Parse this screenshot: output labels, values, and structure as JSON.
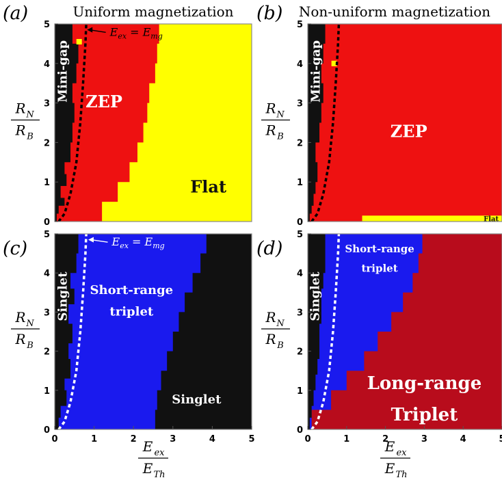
{
  "chart_data": [
    {
      "id": "a",
      "type": "heatmap",
      "panel_letter": "(a)",
      "title": "Uniform magnetization",
      "xlim": [
        0,
        5
      ],
      "ylim": [
        0,
        5
      ],
      "x_ticks": [],
      "y_ticks": [
        "0",
        "1",
        "2",
        "3",
        "4",
        "5"
      ],
      "ylabel_num": "R",
      "ylabel_num_sub": "N",
      "ylabel_den": "R",
      "ylabel_den_sub": "B",
      "colors": {
        "left": "#111111",
        "middle": "#ee1111",
        "right": "#ffff00"
      },
      "boundary_left": [
        [
          0.0,
          0.05
        ],
        [
          0.2,
          0.1
        ],
        [
          0.4,
          0.25
        ],
        [
          0.6,
          0.15
        ],
        [
          0.9,
          0.3
        ],
        [
          1.2,
          0.25
        ],
        [
          1.5,
          0.4
        ],
        [
          2.0,
          0.45
        ],
        [
          2.5,
          0.5
        ],
        [
          3.0,
          0.45
        ],
        [
          3.5,
          0.55
        ],
        [
          4.0,
          0.6
        ],
        [
          4.5,
          0.45
        ],
        [
          5.0,
          0.5
        ]
      ],
      "boundary_right": [
        [
          0.0,
          1.2
        ],
        [
          0.5,
          1.6
        ],
        [
          1.0,
          1.9
        ],
        [
          1.5,
          2.1
        ],
        [
          2.0,
          2.25
        ],
        [
          2.5,
          2.35
        ],
        [
          3.0,
          2.4
        ],
        [
          3.5,
          2.55
        ],
        [
          4.0,
          2.6
        ],
        [
          4.5,
          2.65
        ],
        [
          5.0,
          2.75
        ]
      ],
      "dashed_curve": {
        "color": "#000000",
        "points": [
          [
            0.1,
            0.0
          ],
          [
            0.25,
            0.2
          ],
          [
            0.4,
            0.7
          ],
          [
            0.55,
            1.5
          ],
          [
            0.65,
            2.5
          ],
          [
            0.72,
            3.5
          ],
          [
            0.78,
            4.5
          ],
          [
            0.8,
            5.0
          ]
        ]
      },
      "labels": [
        {
          "text": "Mini-gap",
          "x": 0.22,
          "y": 3.8,
          "rotate": -90,
          "size": 18,
          "cls": "white"
        },
        {
          "text": "ZEP",
          "x": 1.25,
          "y": 3.0,
          "rotate": 0,
          "size": 24,
          "cls": "white"
        },
        {
          "text": "Flat",
          "x": 3.9,
          "y": 0.85,
          "rotate": 0,
          "size": 24,
          "cls": "dark"
        }
      ],
      "annotation": {
        "text_main": "E",
        "text_sub": "ex",
        "text_eq": " = E",
        "text_sub2": "mg",
        "color": "#000000",
        "x": 1.4,
        "y": 4.7,
        "arrow_to": [
          0.82,
          4.85
        ]
      },
      "small_markers": [
        {
          "x": 0.62,
          "y": 4.55,
          "color": "#ffff00"
        }
      ]
    },
    {
      "id": "b",
      "type": "heatmap",
      "panel_letter": "(b)",
      "title": "Non-uniform magnetization",
      "xlim": [
        0,
        5
      ],
      "ylim": [
        0,
        5
      ],
      "x_ticks": [],
      "y_ticks": [
        "0",
        "1",
        "2",
        "3",
        "4",
        "5"
      ],
      "ylabel_num": "R",
      "ylabel_num_sub": "N",
      "ylabel_den": "R",
      "ylabel_den_sub": "B",
      "colors": {
        "left": "#111111",
        "middle": "#ee1111",
        "right": "#ffff00"
      },
      "boundary_left": [
        [
          0.0,
          0.05
        ],
        [
          0.2,
          0.1
        ],
        [
          0.4,
          0.15
        ],
        [
          0.7,
          0.2
        ],
        [
          1.0,
          0.25
        ],
        [
          1.5,
          0.2
        ],
        [
          2.0,
          0.3
        ],
        [
          2.5,
          0.35
        ],
        [
          3.0,
          0.4
        ],
        [
          3.5,
          0.35
        ],
        [
          4.0,
          0.4
        ],
        [
          4.5,
          0.45
        ],
        [
          5.0,
          0.5
        ]
      ],
      "bottom_strip": {
        "x_from": 1.4,
        "height": 0.15
      },
      "dashed_curve": {
        "color": "#000000",
        "points": [
          [
            0.1,
            0.0
          ],
          [
            0.25,
            0.2
          ],
          [
            0.4,
            0.7
          ],
          [
            0.55,
            1.5
          ],
          [
            0.65,
            2.5
          ],
          [
            0.72,
            3.5
          ],
          [
            0.78,
            4.5
          ],
          [
            0.8,
            5.0
          ]
        ]
      },
      "labels": [
        {
          "text": "Mini-gap",
          "x": 0.22,
          "y": 3.8,
          "rotate": -90,
          "size": 18,
          "cls": "white"
        },
        {
          "text": "ZEP",
          "x": 2.6,
          "y": 2.25,
          "rotate": 0,
          "size": 24,
          "cls": "white"
        },
        {
          "text": "Flat",
          "x": 4.72,
          "y": 0.05,
          "rotate": 0,
          "size": 10,
          "cls": "dark"
        }
      ],
      "small_markers": [
        {
          "x": 0.68,
          "y": 4.0,
          "color": "#ffff00"
        }
      ]
    },
    {
      "id": "c",
      "type": "heatmap",
      "panel_letter": "(c)",
      "xlim": [
        0,
        5
      ],
      "ylim": [
        0,
        5
      ],
      "x_ticks": [
        "0",
        "1",
        "2",
        "3",
        "4",
        "5"
      ],
      "y_ticks": [
        "0",
        "1",
        "2",
        "3",
        "4",
        "5"
      ],
      "ylabel_num": "R",
      "ylabel_num_sub": "N",
      "ylabel_den": "R",
      "ylabel_den_sub": "B",
      "xlabel_num": "E",
      "xlabel_num_sub": "ex",
      "xlabel_den": "E",
      "xlabel_den_sub": "Th",
      "colors": {
        "left": "#111111",
        "middle": "#1a1aee",
        "right": "#111111"
      },
      "boundary_left": [
        [
          0.0,
          0.1
        ],
        [
          0.3,
          0.15
        ],
        [
          0.6,
          0.3
        ],
        [
          1.0,
          0.25
        ],
        [
          1.3,
          0.4
        ],
        [
          1.8,
          0.35
        ],
        [
          2.2,
          0.45
        ],
        [
          2.7,
          0.35
        ],
        [
          3.2,
          0.5
        ],
        [
          3.6,
          0.4
        ],
        [
          4.0,
          0.55
        ],
        [
          4.5,
          0.6
        ],
        [
          5.0,
          0.65
        ]
      ],
      "boundary_right": [
        [
          0.0,
          2.55
        ],
        [
          0.5,
          2.6
        ],
        [
          1.0,
          2.7
        ],
        [
          1.5,
          2.85
        ],
        [
          2.0,
          3.0
        ],
        [
          2.5,
          3.15
        ],
        [
          3.0,
          3.3
        ],
        [
          3.5,
          3.5
        ],
        [
          4.0,
          3.7
        ],
        [
          4.5,
          3.85
        ],
        [
          5.0,
          4.05
        ]
      ],
      "dashed_curve": {
        "color": "#ffffff",
        "points": [
          [
            0.1,
            0.0
          ],
          [
            0.25,
            0.2
          ],
          [
            0.4,
            0.7
          ],
          [
            0.55,
            1.5
          ],
          [
            0.65,
            2.5
          ],
          [
            0.72,
            3.5
          ],
          [
            0.78,
            4.5
          ],
          [
            0.8,
            5.0
          ]
        ]
      },
      "labels": [
        {
          "text": "Singlet",
          "x": 0.22,
          "y": 3.4,
          "rotate": -90,
          "size": 18,
          "cls": "white"
        },
        {
          "text": "Short-range",
          "x": 1.95,
          "y": 3.55,
          "rotate": 0,
          "size": 18,
          "cls": "white"
        },
        {
          "text": "triplet",
          "x": 1.95,
          "y": 3.0,
          "rotate": 0,
          "size": 18,
          "cls": "white"
        },
        {
          "text": "Singlet",
          "x": 3.6,
          "y": 0.75,
          "rotate": 0,
          "size": 18,
          "cls": "white"
        }
      ],
      "annotation": {
        "text_main": "E",
        "text_sub": "ex",
        "text_eq": " = E",
        "text_sub2": "mg",
        "color": "#ffffff",
        "x": 1.45,
        "y": 4.7,
        "arrow_to": [
          0.85,
          4.85
        ]
      }
    },
    {
      "id": "d",
      "type": "heatmap",
      "panel_letter": "(d)",
      "xlim": [
        0,
        5
      ],
      "ylim": [
        0,
        5
      ],
      "x_ticks": [
        "0",
        "1",
        "2",
        "3",
        "4",
        "5"
      ],
      "y_ticks": [
        "0",
        "1",
        "2",
        "3",
        "4",
        "5"
      ],
      "ylabel_num": "R",
      "ylabel_num_sub": "N",
      "ylabel_den": "R",
      "ylabel_den_sub": "B",
      "xlabel_num": "E",
      "xlabel_num_sub": "ex",
      "xlabel_den": "E",
      "xlabel_den_sub": "Th",
      "colors": {
        "left": "#111111",
        "middle": "#1a1aee",
        "right": "#b80c1c"
      },
      "boundary_left": [
        [
          0.0,
          0.05
        ],
        [
          0.3,
          0.1
        ],
        [
          0.6,
          0.15
        ],
        [
          1.0,
          0.2
        ],
        [
          1.4,
          0.25
        ],
        [
          1.8,
          0.3
        ],
        [
          2.2,
          0.3
        ],
        [
          2.7,
          0.35
        ],
        [
          3.2,
          0.35
        ],
        [
          3.6,
          0.4
        ],
        [
          4.0,
          0.45
        ],
        [
          4.5,
          0.45
        ],
        [
          5.0,
          0.5
        ]
      ],
      "boundary_right": [
        [
          0.0,
          0.1
        ],
        [
          0.5,
          0.6
        ],
        [
          1.0,
          1.0
        ],
        [
          1.5,
          1.45
        ],
        [
          2.0,
          1.8
        ],
        [
          2.5,
          2.15
        ],
        [
          3.0,
          2.45
        ],
        [
          3.5,
          2.7
        ],
        [
          4.0,
          2.85
        ],
        [
          4.5,
          2.95
        ],
        [
          5.0,
          3.05
        ]
      ],
      "dashed_curve": {
        "color": "#ffffff",
        "points": [
          [
            0.1,
            0.0
          ],
          [
            0.25,
            0.2
          ],
          [
            0.4,
            0.7
          ],
          [
            0.55,
            1.5
          ],
          [
            0.65,
            2.5
          ],
          [
            0.72,
            3.5
          ],
          [
            0.78,
            4.5
          ],
          [
            0.8,
            5.0
          ]
        ]
      },
      "labels": [
        {
          "text": "Singlet",
          "x": 0.2,
          "y": 3.4,
          "rotate": -90,
          "size": 18,
          "cls": "white"
        },
        {
          "text": "Short-range",
          "x": 1.85,
          "y": 4.6,
          "rotate": 0,
          "size": 15,
          "cls": "white"
        },
        {
          "text": "triplet",
          "x": 1.85,
          "y": 4.1,
          "rotate": 0,
          "size": 15,
          "cls": "white"
        },
        {
          "text": "Long-range",
          "x": 3.0,
          "y": 1.15,
          "rotate": 0,
          "size": 26,
          "cls": "white"
        },
        {
          "text": "Triplet",
          "x": 3.0,
          "y": 0.35,
          "rotate": 0,
          "size": 26,
          "cls": "white"
        }
      ]
    }
  ]
}
